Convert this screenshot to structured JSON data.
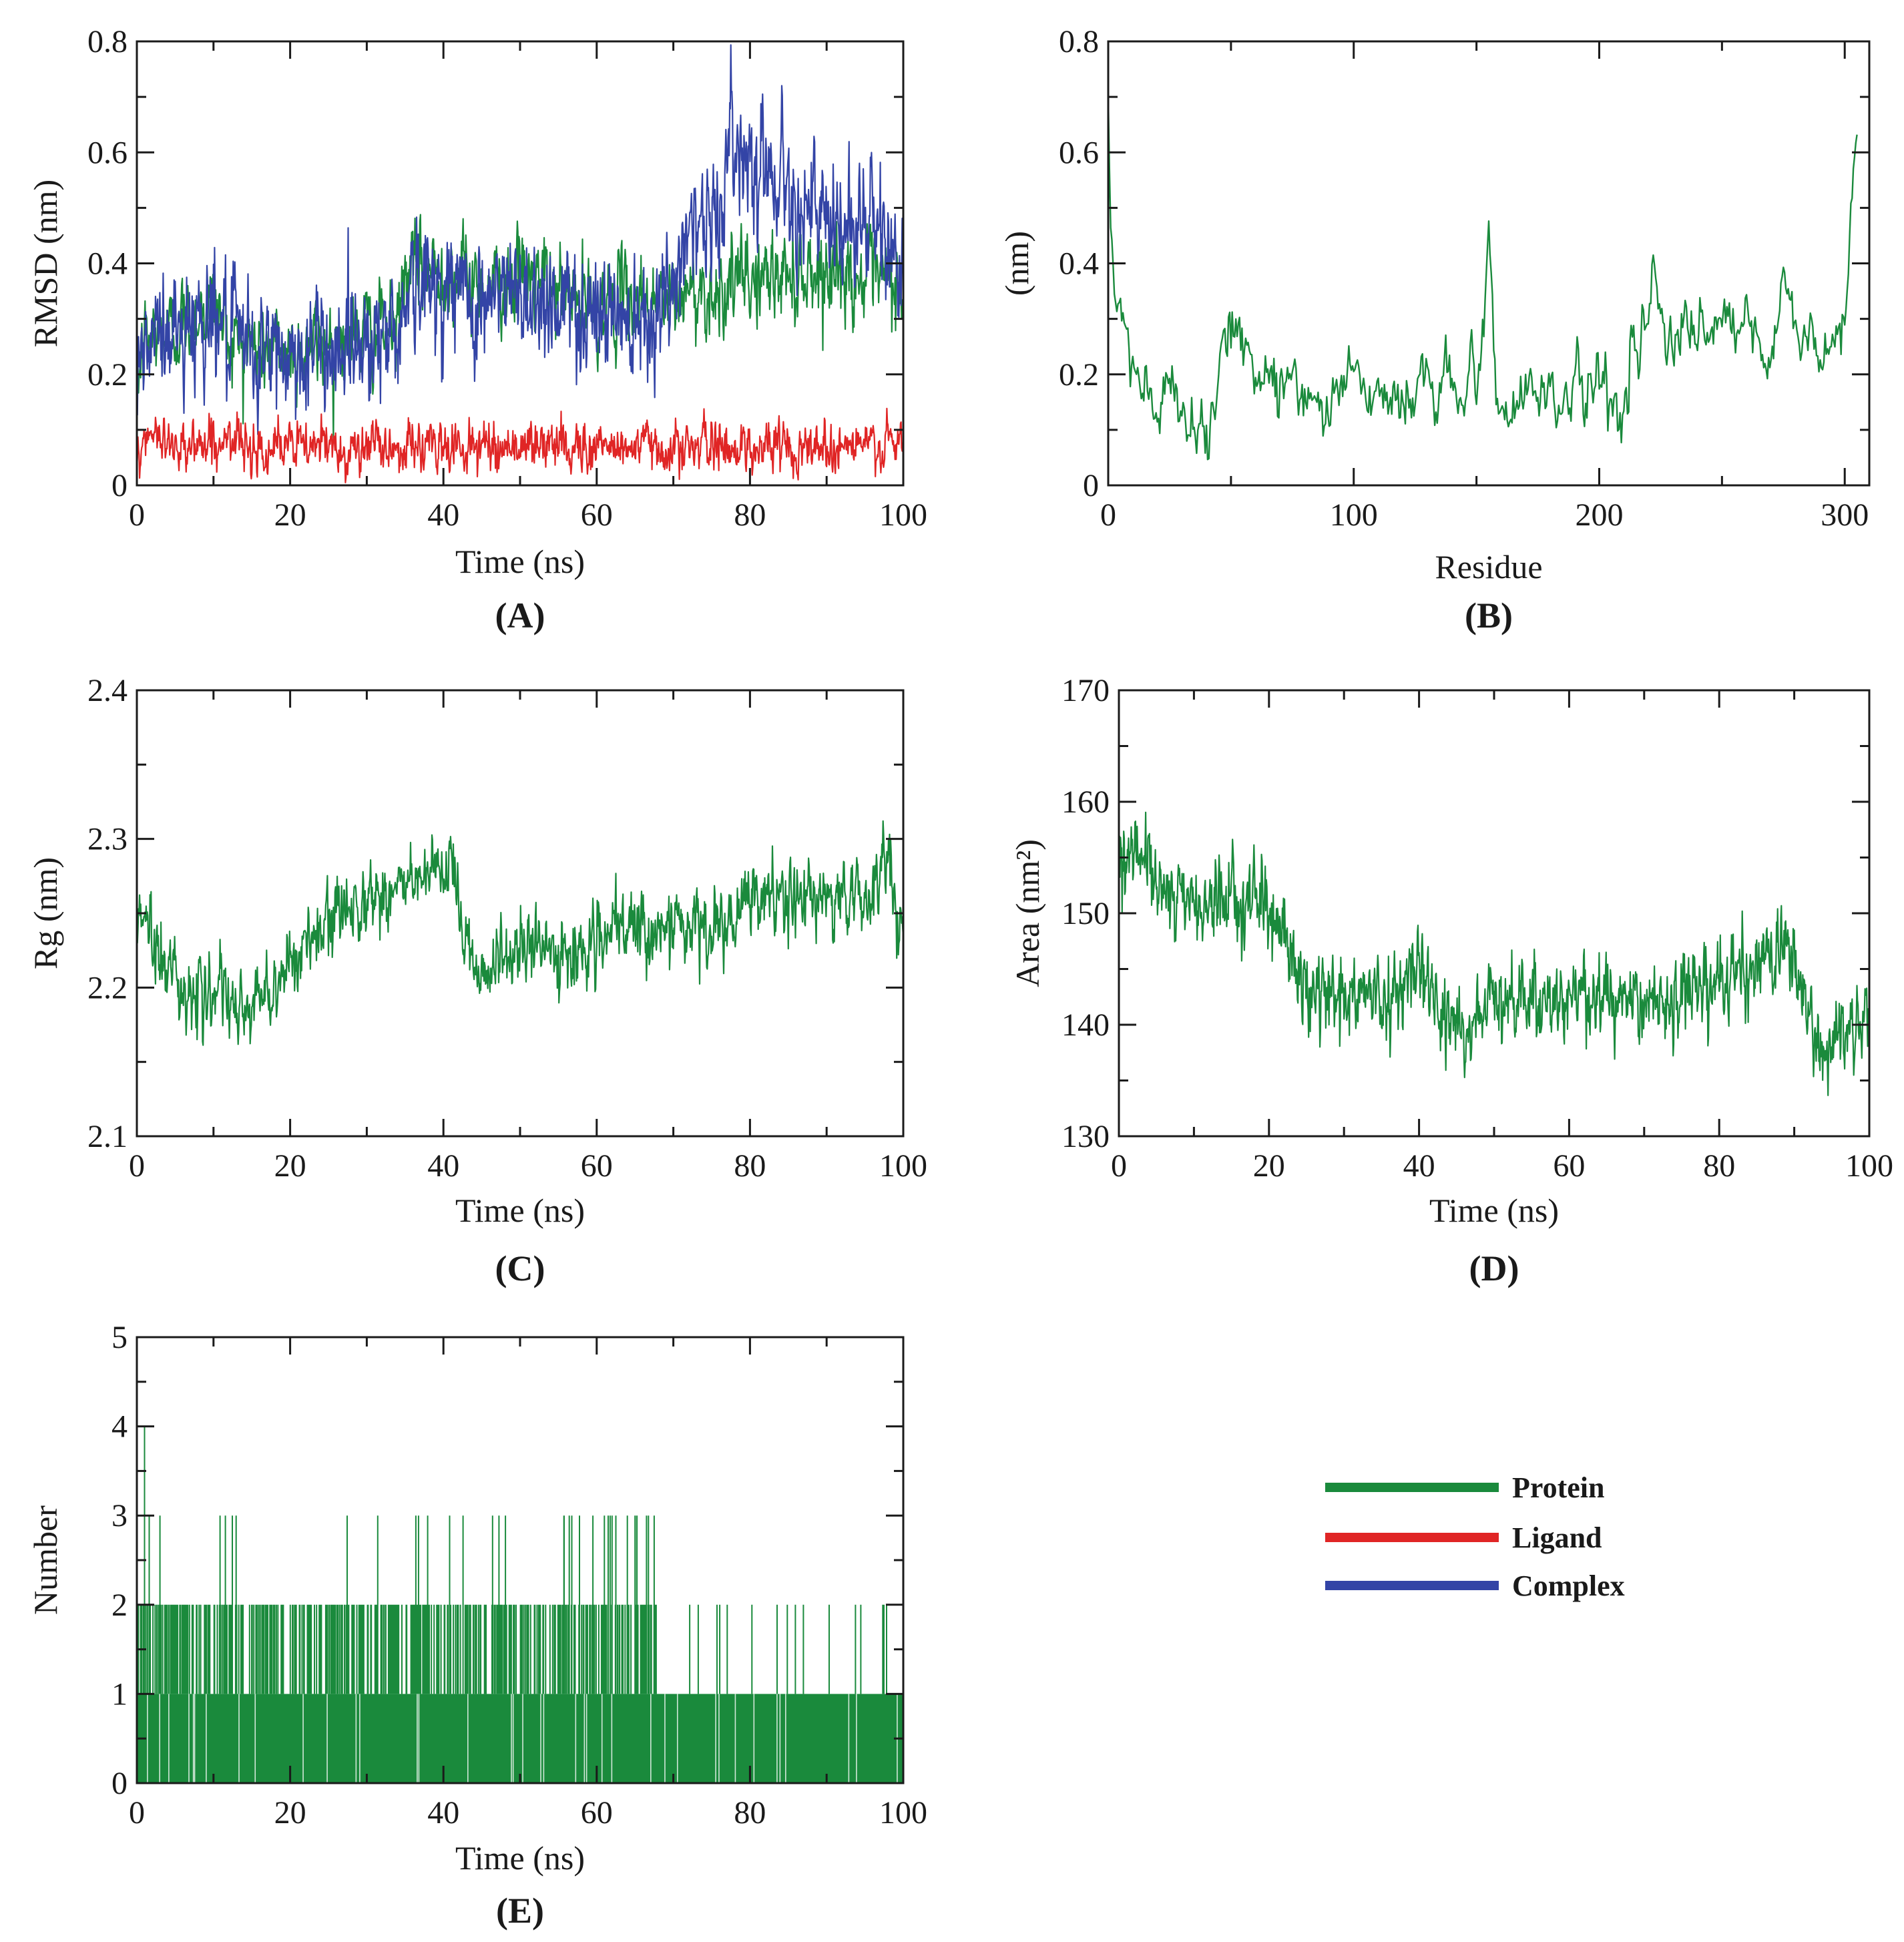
{
  "legend": {
    "items": [
      {
        "label": "Protein",
        "color": "#1a8a3c"
      },
      {
        "label": "Ligand",
        "color": "#e02525"
      },
      {
        "label": "Complex",
        "color": "#3344a6"
      }
    ]
  },
  "chart_data": [
    {
      "id": "A",
      "panel_label": "(A)",
      "type": "line",
      "title": "",
      "xlabel": "Time (ns)",
      "ylabel": "RMSD (nm)",
      "xlim": [
        0,
        100
      ],
      "ylim": [
        0,
        0.8
      ],
      "xticks": [
        0,
        20,
        40,
        60,
        80,
        100
      ],
      "yticks": [
        0,
        0.2,
        0.4,
        0.6,
        0.8
      ],
      "xtick_labels": [
        "0",
        "20",
        "40",
        "60",
        "80",
        "100"
      ],
      "ytick_labels": [
        "0",
        "0.2",
        "0.4",
        "0.6",
        "0.8"
      ],
      "series": [
        {
          "name": "Protein",
          "color": "#1a8a3c",
          "x": [
            0,
            1,
            3,
            6,
            10,
            12,
            15,
            20,
            25,
            30,
            34,
            35,
            40,
            45,
            50,
            55,
            60,
            65,
            70,
            72,
            75,
            80,
            85,
            90,
            95,
            100
          ],
          "y": [
            0.18,
            0.26,
            0.27,
            0.29,
            0.33,
            0.27,
            0.25,
            0.24,
            0.26,
            0.28,
            0.28,
            0.38,
            0.39,
            0.36,
            0.38,
            0.35,
            0.32,
            0.34,
            0.33,
            0.35,
            0.35,
            0.37,
            0.38,
            0.39,
            0.37,
            0.35
          ],
          "noise": 0.035
        },
        {
          "name": "Complex",
          "color": "#3344a6",
          "x": [
            0,
            1,
            3,
            6,
            10,
            12,
            15,
            20,
            25,
            30,
            34,
            35,
            40,
            45,
            50,
            55,
            60,
            65,
            70,
            72,
            75,
            78,
            80,
            85,
            88,
            90,
            95,
            100
          ],
          "y": [
            0.15,
            0.25,
            0.27,
            0.28,
            0.32,
            0.26,
            0.24,
            0.23,
            0.25,
            0.27,
            0.27,
            0.36,
            0.36,
            0.33,
            0.35,
            0.33,
            0.31,
            0.32,
            0.33,
            0.5,
            0.46,
            0.62,
            0.6,
            0.55,
            0.5,
            0.45,
            0.48,
            0.4
          ],
          "noise": 0.05
        },
        {
          "name": "Ligand",
          "color": "#e02525",
          "x": [
            0,
            2,
            10,
            20,
            30,
            40,
            50,
            60,
            70,
            80,
            90,
            100
          ],
          "y": [
            0.06,
            0.08,
            0.075,
            0.07,
            0.068,
            0.07,
            0.072,
            0.07,
            0.07,
            0.07,
            0.072,
            0.07
          ],
          "noise": 0.02
        }
      ]
    },
    {
      "id": "B",
      "panel_label": "(B)",
      "type": "line",
      "title": "",
      "xlabel": "Residue",
      "ylabel": "(nm)",
      "xlim": [
        0,
        310
      ],
      "ylim": [
        0,
        0.8
      ],
      "xticks": [
        0,
        100,
        200,
        300
      ],
      "yticks": [
        0,
        0.2,
        0.4,
        0.6,
        0.8
      ],
      "xtick_labels": [
        "0",
        "100",
        "200",
        "300"
      ],
      "ytick_labels": [
        "0",
        "0.2",
        "0.4",
        "0.6",
        "0.8"
      ],
      "series": [
        {
          "name": "Protein",
          "color": "#1a8a3c",
          "x": [
            0,
            1,
            3,
            6,
            10,
            15,
            20,
            25,
            30,
            35,
            40,
            45,
            50,
            53,
            56,
            60,
            65,
            70,
            75,
            80,
            85,
            90,
            95,
            100,
            105,
            110,
            115,
            120,
            125,
            130,
            135,
            140,
            145,
            148,
            150,
            153,
            155,
            158,
            160,
            165,
            170,
            175,
            180,
            185,
            190,
            195,
            200,
            205,
            210,
            215,
            220,
            222,
            225,
            230,
            235,
            240,
            245,
            250,
            255,
            260,
            265,
            270,
            275,
            278,
            282,
            285,
            290,
            295,
            300,
            303,
            305
          ],
          "y": [
            0.7,
            0.45,
            0.35,
            0.28,
            0.22,
            0.16,
            0.12,
            0.2,
            0.11,
            0.15,
            0.1,
            0.2,
            0.27,
            0.3,
            0.25,
            0.2,
            0.24,
            0.17,
            0.2,
            0.15,
            0.18,
            0.12,
            0.2,
            0.22,
            0.17,
            0.18,
            0.15,
            0.14,
            0.18,
            0.19,
            0.16,
            0.2,
            0.12,
            0.28,
            0.1,
            0.3,
            0.47,
            0.16,
            0.12,
            0.15,
            0.2,
            0.16,
            0.18,
            0.15,
            0.18,
            0.16,
            0.22,
            0.15,
            0.13,
            0.25,
            0.32,
            0.4,
            0.3,
            0.22,
            0.3,
            0.26,
            0.28,
            0.3,
            0.25,
            0.32,
            0.22,
            0.2,
            0.38,
            0.33,
            0.25,
            0.3,
            0.2,
            0.25,
            0.3,
            0.55,
            0.67
          ],
          "noise": 0.025
        }
      ]
    },
    {
      "id": "C",
      "panel_label": "(C)",
      "type": "line",
      "title": "",
      "xlabel": "Time (ns)",
      "ylabel": "Rg (nm)",
      "xlim": [
        0,
        100
      ],
      "ylim": [
        2.1,
        2.4
      ],
      "xticks": [
        0,
        20,
        40,
        60,
        80,
        100
      ],
      "yticks": [
        2.1,
        2.2,
        2.3,
        2.4
      ],
      "xtick_labels": [
        "0",
        "20",
        "40",
        "60",
        "80",
        "100"
      ],
      "ytick_labels": [
        "2.1",
        "2.2",
        "2.3",
        "2.4"
      ],
      "series": [
        {
          "name": "Protein",
          "color": "#1a8a3c",
          "x": [
            0,
            1,
            3,
            5,
            8,
            10,
            13,
            15,
            18,
            20,
            23,
            25,
            28,
            30,
            35,
            38,
            41,
            42,
            44,
            46,
            50,
            55,
            60,
            65,
            70,
            75,
            78,
            80,
            85,
            90,
            95,
            98,
            100
          ],
          "y": [
            2.23,
            2.25,
            2.22,
            2.21,
            2.19,
            2.2,
            2.18,
            2.19,
            2.2,
            2.22,
            2.23,
            2.24,
            2.26,
            2.26,
            2.27,
            2.27,
            2.28,
            2.25,
            2.22,
            2.21,
            2.23,
            2.22,
            2.23,
            2.24,
            2.24,
            2.24,
            2.24,
            2.26,
            2.26,
            2.26,
            2.26,
            2.29,
            2.23
          ],
          "noise": 0.011
        }
      ]
    },
    {
      "id": "D",
      "panel_label": "(D)",
      "type": "line",
      "title": "",
      "xlabel": "Time (ns)",
      "ylabel": "Area (nm²)",
      "xlim": [
        0,
        100
      ],
      "ylim": [
        130,
        170
      ],
      "xticks": [
        0,
        20,
        40,
        60,
        80,
        100
      ],
      "yticks": [
        130,
        140,
        150,
        160,
        170
      ],
      "xtick_labels": [
        "0",
        "20",
        "40",
        "60",
        "80",
        "100"
      ],
      "ytick_labels": [
        "130",
        "140",
        "150",
        "160",
        "170"
      ],
      "series": [
        {
          "name": "Protein",
          "color": "#1a8a3c",
          "x": [
            0,
            2,
            5,
            8,
            10,
            13,
            16,
            18,
            20,
            22,
            24,
            26,
            30,
            35,
            38,
            40,
            42,
            45,
            47,
            50,
            55,
            60,
            65,
            70,
            75,
            80,
            85,
            88,
            90,
            92,
            94,
            96,
            98,
            100
          ],
          "y": [
            155,
            156,
            153,
            151,
            151,
            150,
            152,
            152,
            150,
            148,
            144,
            143,
            143,
            142,
            144,
            146,
            142,
            140,
            139,
            143,
            142,
            143,
            142,
            142,
            143,
            144,
            145,
            147,
            146,
            140,
            137,
            139,
            141,
            142
          ],
          "noise": 1.6
        }
      ]
    },
    {
      "id": "E",
      "panel_label": "(E)",
      "type": "line",
      "title": "",
      "xlabel": "Time (ns)",
      "ylabel": "Number",
      "xlim": [
        0,
        100
      ],
      "ylim": [
        0,
        5
      ],
      "xticks": [
        0,
        20,
        40,
        60,
        80,
        100
      ],
      "yticks": [
        0,
        1,
        2,
        3,
        4,
        5
      ],
      "xtick_labels": [
        "0",
        "20",
        "40",
        "60",
        "80",
        "100"
      ],
      "ytick_labels": [
        "0",
        "1",
        "2",
        "3",
        "4",
        "5"
      ],
      "series": [
        {
          "name": "Protein",
          "color": "#1a8a3c",
          "description_values": "hydrogen-bond count per frame, integer values 0-4",
          "level_segments": [
            {
              "from": 0,
              "to": 68,
              "typical_max": 2,
              "peak": 3
            },
            {
              "from": 68,
              "to": 100,
              "typical_max": 1,
              "peak": 2
            }
          ],
          "max_value": 4,
          "max_at": 1
        }
      ]
    }
  ]
}
